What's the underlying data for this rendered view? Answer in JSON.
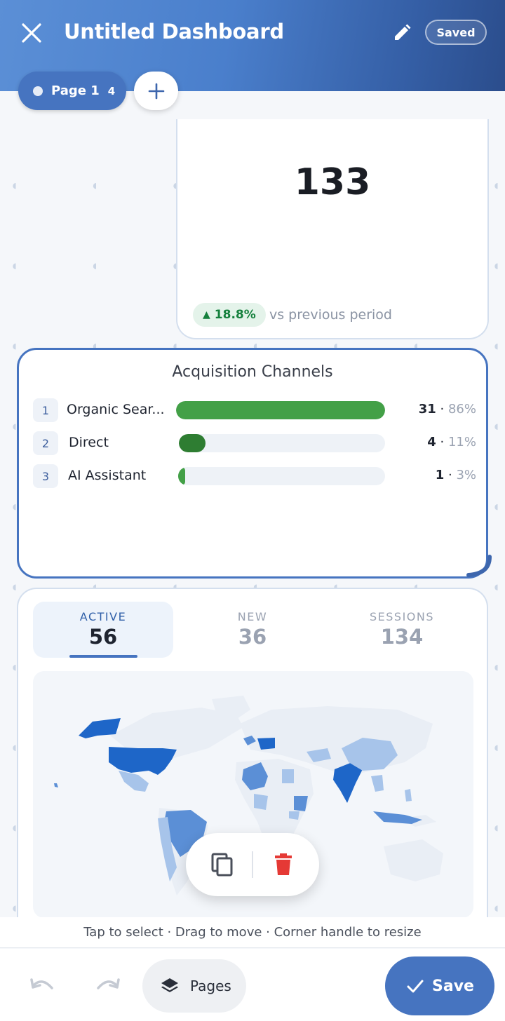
{
  "header": {
    "title": "Untitled Dashboard",
    "status_badge": "Saved"
  },
  "pages": {
    "active_tab_label": "Page 1",
    "active_tab_count": "4"
  },
  "kpi_card": {
    "value": "133",
    "trend_value": "18.8%",
    "trend_direction": "up",
    "trend_label": "vs previous period",
    "trend_color": "#15803d"
  },
  "acquisition": {
    "title": "Acquisition Channels",
    "rows": [
      {
        "rank": "1",
        "label": "Organic Sear...",
        "value": "31",
        "percent": "86%",
        "fill_fraction": 1.0,
        "color": "#43a047"
      },
      {
        "rank": "2",
        "label": "Direct",
        "value": "4",
        "percent": "11%",
        "fill_fraction": 0.13,
        "color": "#2e7d32"
      },
      {
        "rank": "3",
        "label": "AI Assistant",
        "value": "1",
        "percent": "3%",
        "fill_fraction": 0.035,
        "color": "#43a047"
      }
    ]
  },
  "geo_card": {
    "metrics": [
      {
        "label": "ACTIVE",
        "value": "56",
        "selected": true
      },
      {
        "label": "NEW",
        "value": "36",
        "selected": false
      },
      {
        "label": "SESSIONS",
        "value": "134",
        "selected": false
      }
    ],
    "map_colors": {
      "base": "#e9eef5",
      "high": "#1e66c8",
      "mid": "#5b8fd6",
      "low": "#a7c4ea"
    }
  },
  "hint_text": "Tap to select · Drag to move · Corner handle to resize",
  "bottom_bar": {
    "pages_label": "Pages",
    "save_label": "Save"
  },
  "colors": {
    "accent": "#4674c0",
    "delete": "#e53935"
  }
}
